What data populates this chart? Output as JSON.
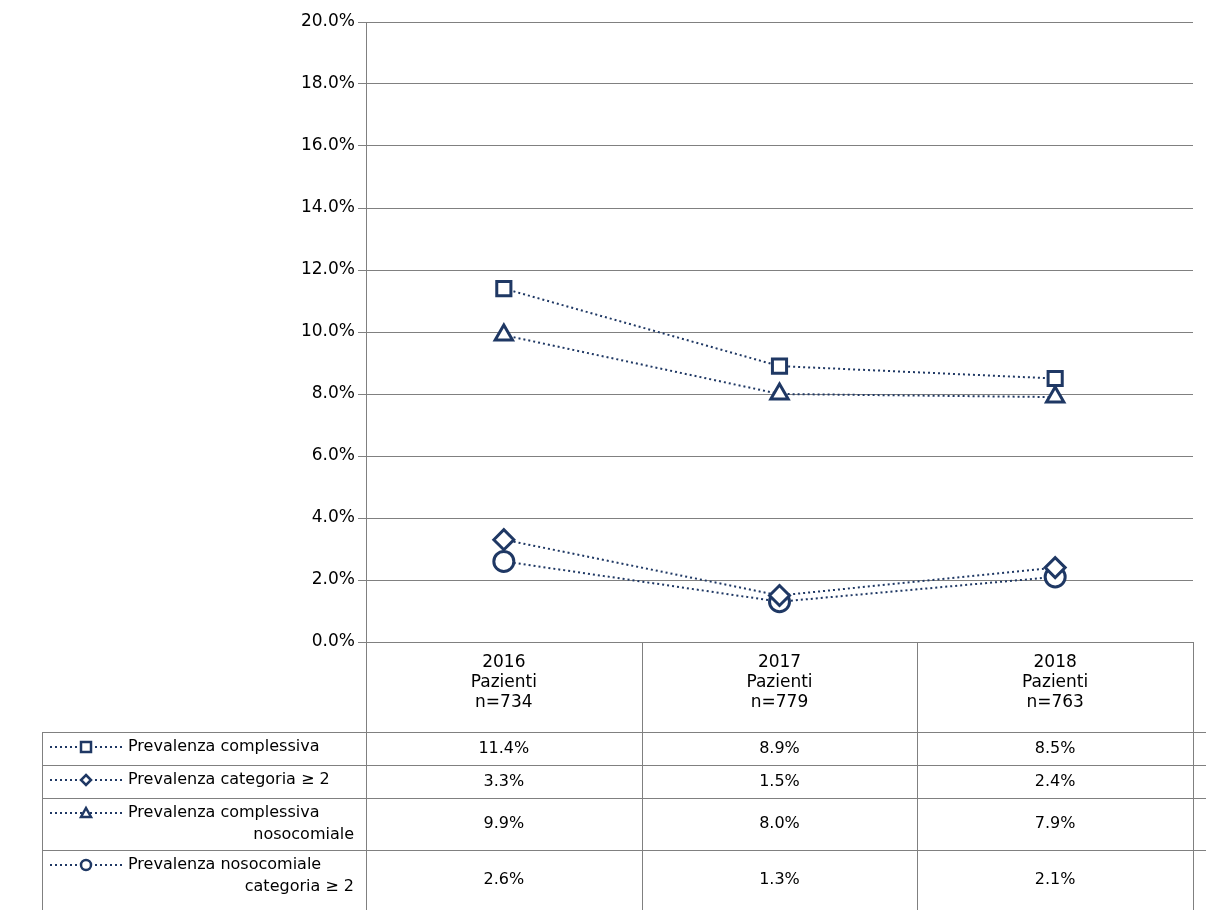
{
  "chart_data": {
    "type": "line",
    "categories": [
      "2016\nPazienti\nn=734",
      "2017\nPazienti\nn=779",
      "2018\nPazienti\nn=763"
    ],
    "series": [
      {
        "name": "Prevalenza complessiva",
        "color": "#1f3864",
        "marker": "square",
        "values": [
          11.4,
          8.9,
          8.5
        ],
        "value_labels": [
          "11.4%",
          "8.9%",
          "8.5%"
        ]
      },
      {
        "name": "Prevalenza categoria ≥ 2",
        "color": "#1f3864",
        "marker": "diamond",
        "values": [
          3.3,
          1.5,
          2.4
        ],
        "value_labels": [
          "3.3%",
          "1.5%",
          "2.4%"
        ]
      },
      {
        "name": "Prevalenza complessiva nosocomiale",
        "color": "#1f3864",
        "marker": "triangle",
        "values": [
          9.9,
          8.0,
          7.9
        ],
        "value_labels": [
          "9.9%",
          "8.0%",
          "7.9%"
        ]
      },
      {
        "name": "Prevalenza nosocomiale categoria ≥ 2",
        "color": "#1f3864",
        "marker": "circle",
        "values": [
          2.6,
          1.3,
          2.1
        ],
        "value_labels": [
          "2.6%",
          "1.3%",
          "2.1%"
        ]
      }
    ],
    "ylim": [
      0,
      20
    ],
    "yticks": [
      {
        "value": 0,
        "label": "0.0%"
      },
      {
        "value": 2,
        "label": "2.0%"
      },
      {
        "value": 4,
        "label": "4.0%"
      },
      {
        "value": 6,
        "label": "6.0%"
      },
      {
        "value": 8,
        "label": "8.0%"
      },
      {
        "value": 10,
        "label": "10.0%"
      },
      {
        "value": 12,
        "label": "12.0%"
      },
      {
        "value": 14,
        "label": "14.0%"
      },
      {
        "value": 16,
        "label": "16.0%"
      },
      {
        "value": 18,
        "label": "18.0%"
      },
      {
        "value": 20,
        "label": "20.0%"
      }
    ],
    "grid": "y",
    "legend": "bottom",
    "line_style": "dotted"
  }
}
